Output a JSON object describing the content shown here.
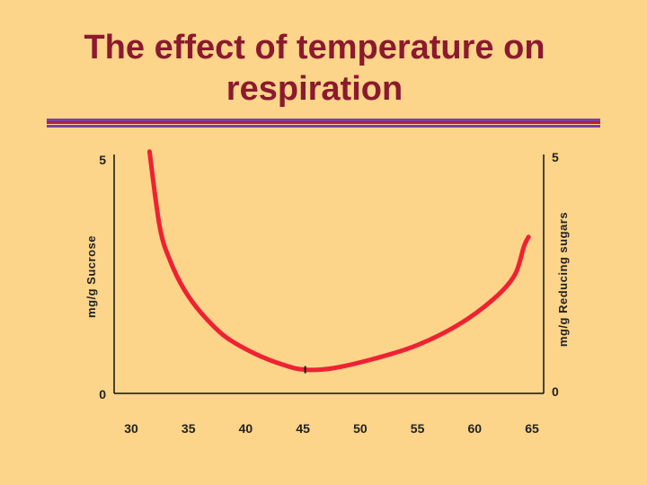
{
  "title": "The effect of temperature on respiration",
  "colors": {
    "background": "#FCD48A",
    "title": "#8B1A2E",
    "curve": "#EE2233",
    "rule_primary": "#7A3FA8",
    "rule_accent": "#B02040"
  },
  "chart_data": {
    "type": "line",
    "title": "The effect of temperature on respiration",
    "xlabel": "",
    "ylabel": "mg/g Sucrose",
    "y2label": "mg/g Reducing sugars",
    "x_ticks": [
      "30",
      "35",
      "40",
      "45",
      "50",
      "55",
      "60",
      "65"
    ],
    "y_ticks": [
      "0",
      "5"
    ],
    "y2_ticks": [
      "0",
      "5"
    ],
    "xlim": [
      30,
      65
    ],
    "ylim": [
      0,
      5
    ],
    "y2lim": [
      0,
      5
    ],
    "grid": false,
    "series": [
      {
        "name": "",
        "color": "#EE2233",
        "points": [
          [
            31.6,
            5.1
          ],
          [
            32.5,
            3.5
          ],
          [
            33.4,
            2.8
          ],
          [
            34.6,
            2.2
          ],
          [
            36.1,
            1.7
          ],
          [
            38.2,
            1.2
          ],
          [
            40.7,
            0.85
          ],
          [
            43.3,
            0.6
          ],
          [
            45.2,
            0.5
          ],
          [
            47.6,
            0.53
          ],
          [
            51.2,
            0.73
          ],
          [
            54.8,
            1.0
          ],
          [
            58.6,
            1.45
          ],
          [
            61.7,
            2.0
          ],
          [
            63.5,
            2.5
          ],
          [
            64.3,
            3.1
          ],
          [
            64.7,
            3.3
          ]
        ]
      }
    ],
    "markers": [
      {
        "x": 45.2,
        "y": 0.5
      }
    ]
  }
}
